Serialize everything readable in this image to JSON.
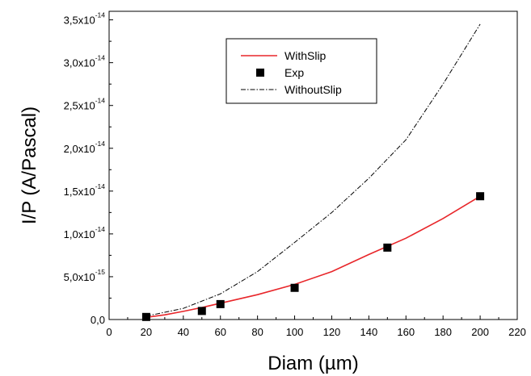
{
  "chart_data": {
    "type": "line",
    "xlabel": "Diam (µm)",
    "ylabel": "I/P (A/Pascal)",
    "xlim": [
      0,
      220
    ],
    "ylim": [
      0,
      3.6e-14
    ],
    "x_ticks": [
      "0",
      "20",
      "40",
      "60",
      "80",
      "100",
      "120",
      "140",
      "160",
      "180",
      "200",
      "220"
    ],
    "y_ticks": [
      {
        "mantissa": "0,0",
        "exp": ""
      },
      {
        "mantissa": "5,0x10",
        "exp": "-15"
      },
      {
        "mantissa": "1,0x10",
        "exp": "-14"
      },
      {
        "mantissa": "1,5x10",
        "exp": "-14"
      },
      {
        "mantissa": "2,0x10",
        "exp": "-14"
      },
      {
        "mantissa": "2,5x10",
        "exp": "-14"
      },
      {
        "mantissa": "3,0x10",
        "exp": "-14"
      },
      {
        "mantissa": "3,5x10",
        "exp": "-14"
      }
    ],
    "legend_position": "top-center",
    "series": [
      {
        "name": "WithSlip",
        "style": "solid-line",
        "color": "#e8262a",
        "x": [
          20,
          30,
          40,
          50,
          60,
          80,
          100,
          120,
          140,
          160,
          180,
          200
        ],
        "y": [
          2.5e-16,
          5.5e-16,
          9.5e-16,
          1.4e-15,
          1.9e-15,
          2.9e-15,
          4.1e-15,
          5.6e-15,
          7.6e-15,
          9.5e-15,
          1.18e-14,
          1.44e-14
        ]
      },
      {
        "name": "Exp",
        "style": "square-markers",
        "color": "#000000",
        "x": [
          20,
          50,
          60,
          100,
          150,
          200
        ],
        "y": [
          3e-16,
          1e-15,
          1.8e-15,
          3.7e-15,
          8.4e-15,
          1.44e-14
        ]
      },
      {
        "name": "WithoutSlip",
        "style": "dash-dot-line",
        "color": "#000000",
        "x": [
          20,
          40,
          60,
          80,
          100,
          120,
          140,
          160,
          180,
          200
        ],
        "y": [
          4e-16,
          1.3e-15,
          3e-15,
          5.6e-15,
          9e-15,
          1.25e-14,
          1.65e-14,
          2.1e-14,
          2.75e-14,
          3.45e-14
        ]
      }
    ]
  }
}
